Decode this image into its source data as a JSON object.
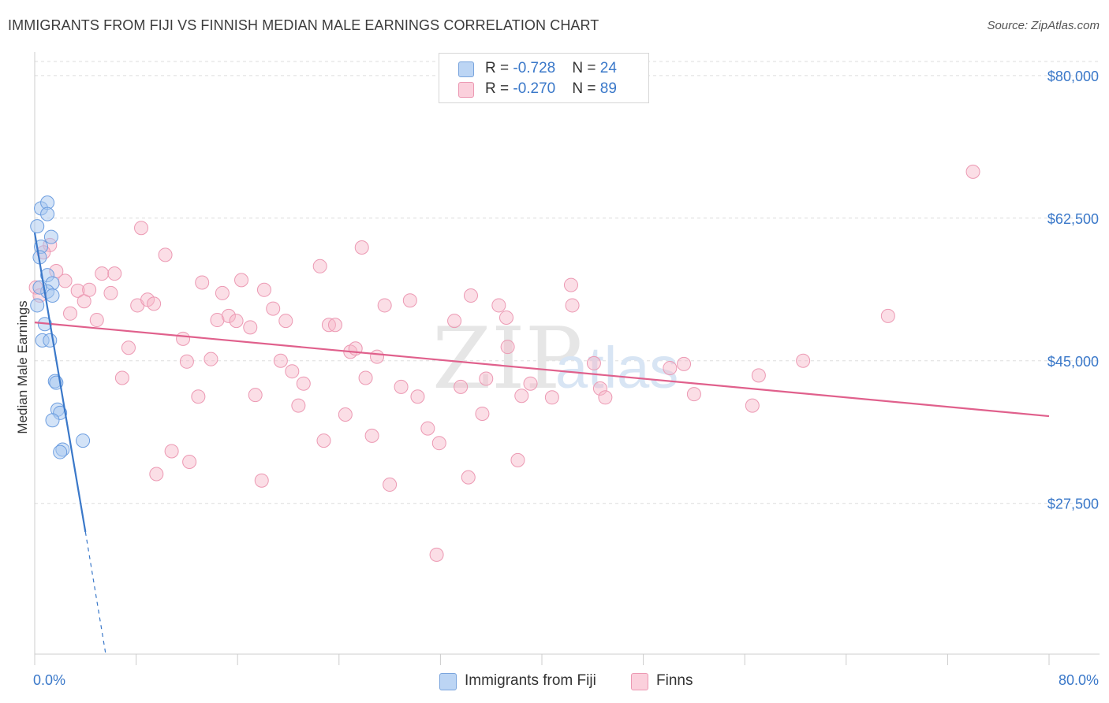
{
  "header": {
    "title": "IMMIGRANTS FROM FIJI VS FINNISH MEDIAN MALE EARNINGS CORRELATION CHART",
    "source": "Source: ZipAtlas.com"
  },
  "watermark": {
    "part1": "ZIP",
    "part2": "atlas"
  },
  "stats_legend": {
    "rows": [
      {
        "r_label": "R = ",
        "r_value": "-0.728",
        "n_label": "N = ",
        "n_value": "24",
        "color": "#a8c8f0"
      },
      {
        "r_label": "R = ",
        "r_value": "-0.270",
        "n_label": "N = ",
        "n_value": "89",
        "color": "#f7b6c8"
      }
    ]
  },
  "bottom_legend": [
    {
      "label": "Immigrants from Fiji",
      "color": "#a8c8f0"
    },
    {
      "label": "Finns",
      "color": "#f7b6c8"
    }
  ],
  "chart_data": {
    "type": "scatter",
    "ylabel": "Median Male Earnings",
    "x_tick_labels": [
      "0.0%",
      "80.0%"
    ],
    "y_tick_labels": [
      "$80,000",
      "$62,500",
      "$45,000",
      "$27,500"
    ],
    "y_ticks": [
      80000,
      62500,
      45000,
      27500
    ],
    "xlim": [
      0,
      80
    ],
    "ylim": [
      9000,
      82500
    ],
    "grid": true,
    "legend_placement": "top-center",
    "colors": {
      "fiji": "#3a78c9",
      "finns": "#e0608c",
      "fiji_fill": "#a8c8f0",
      "finns_fill": "#f7b6c8"
    },
    "series": [
      {
        "name": "Immigrants from Fiji",
        "trend": {
          "x": [
            0,
            4.0
          ],
          "y": [
            60700,
            24000
          ],
          "dashed_to": {
            "x": 5.6,
            "y": 9000
          }
        },
        "points": [
          [
            0.2,
            61500
          ],
          [
            0.5,
            63700
          ],
          [
            1.0,
            64400
          ],
          [
            1.0,
            63000
          ],
          [
            1.3,
            60200
          ],
          [
            0.5,
            59000
          ],
          [
            0.4,
            57700
          ],
          [
            1.0,
            55500
          ],
          [
            1.4,
            54500
          ],
          [
            1.0,
            53500
          ],
          [
            1.4,
            53000
          ],
          [
            0.2,
            51800
          ],
          [
            0.8,
            49500
          ],
          [
            0.6,
            47500
          ],
          [
            1.2,
            47500
          ],
          [
            1.6,
            42500
          ],
          [
            1.7,
            42300
          ],
          [
            1.8,
            39000
          ],
          [
            2.0,
            38600
          ],
          [
            1.4,
            37700
          ],
          [
            3.8,
            35200
          ],
          [
            2.2,
            34100
          ],
          [
            2.0,
            33800
          ],
          [
            0.4,
            54000
          ]
        ]
      },
      {
        "name": "Finns",
        "trend": {
          "x": [
            0,
            80
          ],
          "y": [
            49700,
            38200
          ]
        },
        "points": [
          [
            0.1,
            54000
          ],
          [
            0.4,
            53000
          ],
          [
            1.2,
            59200
          ],
          [
            0.7,
            58300
          ],
          [
            1.7,
            56000
          ],
          [
            2.4,
            54800
          ],
          [
            2.8,
            50800
          ],
          [
            3.4,
            53600
          ],
          [
            3.9,
            52300
          ],
          [
            4.3,
            53700
          ],
          [
            4.9,
            50000
          ],
          [
            5.3,
            55700
          ],
          [
            6.0,
            53300
          ],
          [
            6.3,
            55700
          ],
          [
            7.4,
            46600
          ],
          [
            6.9,
            42900
          ],
          [
            8.1,
            51800
          ],
          [
            8.4,
            61300
          ],
          [
            8.9,
            52500
          ],
          [
            9.4,
            52000
          ],
          [
            9.6,
            31100
          ],
          [
            10.3,
            58000
          ],
          [
            10.8,
            33900
          ],
          [
            11.7,
            47700
          ],
          [
            12.0,
            44900
          ],
          [
            12.2,
            32600
          ],
          [
            12.9,
            40600
          ],
          [
            13.2,
            54600
          ],
          [
            13.9,
            45200
          ],
          [
            14.4,
            50000
          ],
          [
            14.8,
            53300
          ],
          [
            15.3,
            50500
          ],
          [
            15.9,
            49900
          ],
          [
            16.3,
            54900
          ],
          [
            17.0,
            49100
          ],
          [
            17.4,
            40800
          ],
          [
            17.9,
            30300
          ],
          [
            18.1,
            53700
          ],
          [
            18.8,
            51400
          ],
          [
            19.4,
            45000
          ],
          [
            19.8,
            49900
          ],
          [
            20.3,
            43700
          ],
          [
            20.8,
            39500
          ],
          [
            21.2,
            42200
          ],
          [
            22.5,
            56600
          ],
          [
            22.8,
            35200
          ],
          [
            23.2,
            49400
          ],
          [
            23.7,
            49400
          ],
          [
            24.5,
            38400
          ],
          [
            24.9,
            46100
          ],
          [
            25.3,
            46500
          ],
          [
            25.8,
            58900
          ],
          [
            26.1,
            42900
          ],
          [
            26.6,
            35800
          ],
          [
            27.0,
            45500
          ],
          [
            27.6,
            51800
          ],
          [
            28.0,
            29800
          ],
          [
            28.9,
            41800
          ],
          [
            29.6,
            52400
          ],
          [
            30.2,
            40600
          ],
          [
            31.0,
            36700
          ],
          [
            31.7,
            21200
          ],
          [
            31.9,
            34900
          ],
          [
            33.1,
            49900
          ],
          [
            33.6,
            41800
          ],
          [
            34.4,
            53000
          ],
          [
            34.2,
            30700
          ],
          [
            35.3,
            38500
          ],
          [
            35.6,
            42800
          ],
          [
            36.6,
            51800
          ],
          [
            37.2,
            50300
          ],
          [
            37.3,
            46700
          ],
          [
            38.1,
            32800
          ],
          [
            38.4,
            40700
          ],
          [
            39.1,
            42200
          ],
          [
            40.8,
            40500
          ],
          [
            42.3,
            54300
          ],
          [
            42.4,
            51800
          ],
          [
            44.1,
            44700
          ],
          [
            44.6,
            41600
          ],
          [
            45.0,
            40500
          ],
          [
            50.1,
            44100
          ],
          [
            51.2,
            44600
          ],
          [
            52.0,
            40900
          ],
          [
            56.6,
            39500
          ],
          [
            57.1,
            43200
          ],
          [
            60.6,
            45000
          ],
          [
            67.3,
            50500
          ],
          [
            74.0,
            68200
          ]
        ]
      }
    ]
  }
}
